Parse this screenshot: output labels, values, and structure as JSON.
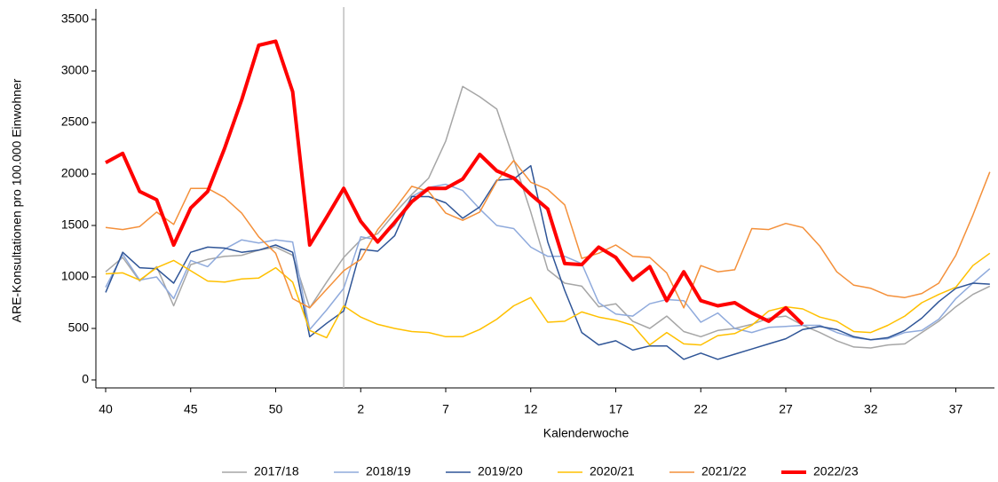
{
  "chart_data": {
    "type": "line",
    "x_label": "Kalenderwoche",
    "y_label": "ARE-Konsultationen pro 100.000 Einwohner",
    "categories": [
      "40",
      null,
      null,
      null,
      null,
      "45",
      null,
      null,
      null,
      null,
      "50",
      null,
      null,
      null,
      null,
      "2",
      null,
      null,
      null,
      null,
      "7",
      null,
      null,
      null,
      null,
      "12",
      null,
      null,
      null,
      null,
      "17",
      null,
      null,
      null,
      null,
      "22",
      null,
      null,
      null,
      null,
      "27",
      null,
      null,
      null,
      null,
      "32",
      null,
      null,
      null,
      null,
      "37",
      null,
      null
    ],
    "ylim": [
      0,
      3500
    ],
    "yticks": [
      0,
      500,
      1000,
      1500,
      2000,
      2500,
      3000,
      3500
    ],
    "grid": false,
    "legend": "bottom",
    "series": [
      {
        "name": "2017/18",
        "color": "#a6a6a6",
        "width": 1.5,
        "values": [
          1050,
          1190,
          960,
          1100,
          720,
          1120,
          1170,
          1200,
          1210,
          1260,
          1290,
          1210,
          700,
          950,
          1190,
          1360,
          1420,
          1620,
          1800,
          1960,
          2320,
          2850,
          2750,
          2630,
          2140,
          1630,
          1070,
          940,
          910,
          710,
          740,
          570,
          500,
          620,
          470,
          420,
          480,
          500,
          540,
          600,
          620,
          530,
          460,
          380,
          320,
          310,
          340,
          350,
          460,
          570,
          710,
          830,
          910
        ]
      },
      {
        "name": "2018/19",
        "color": "#8faadc",
        "width": 1.5,
        "values": [
          900,
          1220,
          970,
          1000,
          790,
          1160,
          1100,
          1270,
          1360,
          1330,
          1360,
          1340,
          490,
          680,
          890,
          1390,
          1360,
          1500,
          1780,
          1870,
          1900,
          1840,
          1660,
          1500,
          1470,
          1290,
          1200,
          1200,
          1130,
          750,
          640,
          620,
          740,
          780,
          770,
          560,
          650,
          500,
          460,
          510,
          520,
          530,
          530,
          460,
          410,
          390,
          400,
          460,
          480,
          590,
          790,
          940,
          1080
        ]
      },
      {
        "name": "2019/20",
        "color": "#2f5597",
        "width": 1.5,
        "values": [
          850,
          1240,
          1090,
          1080,
          940,
          1240,
          1290,
          1280,
          1240,
          1260,
          1310,
          1240,
          420,
          550,
          670,
          1270,
          1250,
          1400,
          1780,
          1780,
          1720,
          1570,
          1680,
          1940,
          1950,
          2080,
          1340,
          870,
          460,
          340,
          380,
          290,
          330,
          330,
          200,
          260,
          200,
          250,
          300,
          350,
          400,
          490,
          520,
          490,
          420,
          390,
          410,
          480,
          600,
          760,
          890,
          940,
          930
        ]
      },
      {
        "name": "2020/21",
        "color": "#ffc000",
        "width": 1.5,
        "values": [
          1030,
          1040,
          970,
          1090,
          1160,
          1060,
          960,
          950,
          980,
          990,
          1090,
          950,
          480,
          410,
          720,
          610,
          540,
          500,
          470,
          460,
          420,
          420,
          490,
          590,
          720,
          800,
          560,
          570,
          660,
          610,
          580,
          530,
          340,
          460,
          350,
          340,
          430,
          450,
          530,
          670,
          710,
          690,
          610,
          570,
          470,
          460,
          530,
          620,
          750,
          830,
          900,
          1110,
          1230
        ]
      },
      {
        "name": "2021/22",
        "color": "#f4903a",
        "width": 1.5,
        "values": [
          1480,
          1460,
          1490,
          1630,
          1510,
          1860,
          1860,
          1770,
          1620,
          1390,
          1230,
          790,
          700,
          880,
          1060,
          1170,
          1460,
          1660,
          1880,
          1830,
          1620,
          1550,
          1630,
          1930,
          2130,
          1920,
          1850,
          1700,
          1180,
          1230,
          1310,
          1200,
          1190,
          1040,
          700,
          1110,
          1050,
          1070,
          1470,
          1460,
          1520,
          1480,
          1300,
          1050,
          920,
          890,
          820,
          800,
          840,
          940,
          1210,
          1600,
          2020
        ]
      },
      {
        "name": "2022/23",
        "color": "#ff0000",
        "width": 4,
        "values": [
          2110,
          2200,
          1830,
          1750,
          1310,
          1670,
          1830,
          2250,
          2720,
          3250,
          3290,
          2800,
          1310,
          1580,
          1860,
          1540,
          1340,
          1530,
          1730,
          1860,
          1860,
          1950,
          2190,
          2030,
          1960,
          1800,
          1660,
          1130,
          1120,
          1290,
          1190,
          970,
          1100,
          770,
          1050,
          770,
          720,
          750,
          650,
          570,
          700,
          540,
          null,
          null,
          null,
          null,
          null,
          null,
          null,
          null,
          null,
          null,
          null
        ]
      }
    ]
  }
}
